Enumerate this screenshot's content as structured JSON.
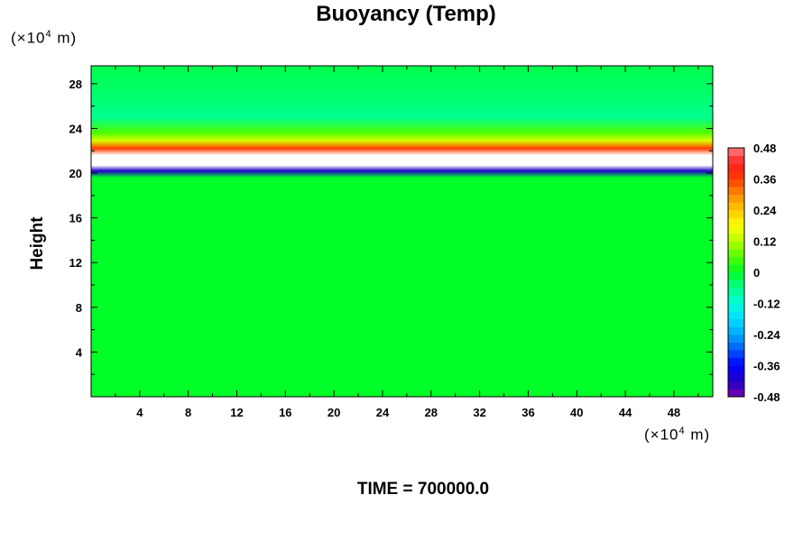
{
  "title": "Buoyancy (Temp)",
  "y_unit": {
    "prefix": "(×10",
    "exp": "4",
    "suffix": " m)"
  },
  "x_unit": {
    "prefix": "(×10",
    "exp": "4",
    "suffix": " m)"
  },
  "ylabel": "Height",
  "time_label": "TIME = 700000.0",
  "chart_data": {
    "type": "heatmap",
    "title": "Buoyancy (Temp)",
    "xlabel": "",
    "ylabel": "Height",
    "x_unit_text": "(×10^4 m)",
    "y_unit_text": "(×10^4 m)",
    "xlim": [
      0,
      51.2
    ],
    "ylim": [
      0,
      29.6
    ],
    "x_ticks": [
      "4",
      "8",
      "12",
      "16",
      "20",
      "24",
      "28",
      "32",
      "36",
      "40",
      "44",
      "48"
    ],
    "y_ticks": [
      "4",
      "8",
      "12",
      "16",
      "20",
      "24",
      "28"
    ],
    "colorbar": {
      "min": -0.48,
      "max": 0.48,
      "step": 0.03,
      "labels": [
        "0.48",
        "0.36",
        "0.24",
        "0.12",
        "0",
        "-0.12",
        "-0.24",
        "-0.36",
        "-0.48"
      ]
    },
    "field_profile": [
      {
        "height": 0,
        "value": 0.0
      },
      {
        "height": 19.6,
        "value": 0.0
      },
      {
        "height": 20.2,
        "value": -0.42
      },
      {
        "height": 20.7,
        "value": 0.48
      },
      {
        "height": 21.6,
        "value": 0.48
      },
      {
        "height": 22.2,
        "value": 0.36
      },
      {
        "height": 22.9,
        "value": 0.15
      },
      {
        "height": 23.6,
        "value": 0.06
      },
      {
        "height": 25.0,
        "value": -0.06
      },
      {
        "height": 27.0,
        "value": -0.04
      },
      {
        "height": 29.6,
        "value": -0.02
      }
    ],
    "grid": false
  }
}
